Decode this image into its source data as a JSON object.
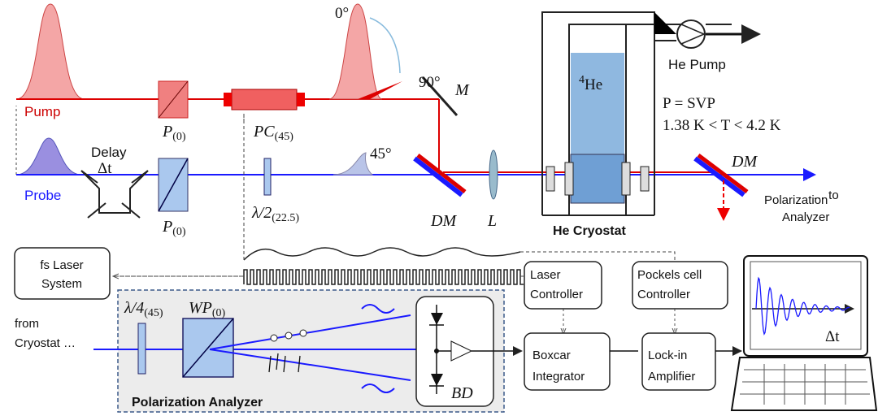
{
  "angles": {
    "pump_0": "0°",
    "pump_90": "90°",
    "probe_45": "45°"
  },
  "beams": {
    "pump": "Pump",
    "probe": "Probe"
  },
  "delay": {
    "label": "Delay",
    "symbol": "Δt"
  },
  "components": {
    "pump_polarizer": {
      "main": "P",
      "sub": "(0)"
    },
    "probe_polarizer": {
      "main": "P",
      "sub": "(0)"
    },
    "pockels_cell": {
      "main": "PC",
      "sub": "(45)"
    },
    "half_wave": {
      "main": "λ/2",
      "sub": "(22.5)"
    },
    "mirror": "M",
    "dichroic_1": "DM",
    "dichroic_2": "DM",
    "lens": "L"
  },
  "cryostat": {
    "isotope": {
      "sup": "4",
      "main": "He"
    },
    "pump": "He Pump",
    "pressure": "P = SVP",
    "temperature": "1.38 K < T < 4.2 K",
    "label": "He Cryostat"
  },
  "output": {
    "lines": [
      "… to",
      "Polarization",
      "Analyzer"
    ]
  },
  "boxes": {
    "laser": [
      "fs Laser",
      "System"
    ],
    "laser_controller": [
      "Laser",
      "Controller"
    ],
    "pockels_controller": [
      "Pockels cell",
      "Controller"
    ],
    "boxcar": [
      "Boxcar",
      "Integrator"
    ],
    "lockin": [
      "Lock-in",
      "Amplifier"
    ]
  },
  "analyzer": {
    "quarter_wave": {
      "main": "λ/4",
      "sub": "(45)"
    },
    "wollaston": {
      "main": "WP",
      "sub": "(0)"
    },
    "input": [
      "from",
      "Cryostat …"
    ],
    "detector": "BD",
    "label": "Polarization Analyzer"
  },
  "screen": {
    "axis": "Δt"
  }
}
